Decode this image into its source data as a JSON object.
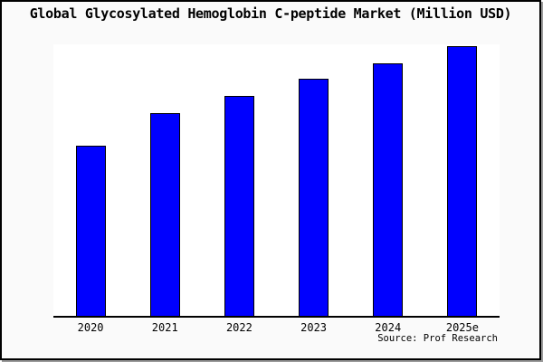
{
  "title": "Global Glycosylated Hemoglobin C-peptide Market (Million USD)",
  "source": "Source: Prof Research",
  "colors": {
    "page_bg": "#fafafa",
    "plot_bg": "#ffffff",
    "bar_fill": "#0000fe",
    "bar_border": "#000000",
    "axis": "#000000",
    "frame_border": "#000000",
    "text": "#000000"
  },
  "chart_data": {
    "type": "bar",
    "title": "Global Glycosylated Hemoglobin C-peptide Market (Million USD)",
    "categories": [
      "2020",
      "2021",
      "2022",
      "2023",
      "2024",
      "2025e"
    ],
    "values": [
      63.0,
      75.3,
      81.6,
      87.8,
      93.7,
      100.0
    ],
    "values_note": "No y-axis or data labels are shown in the chart; values are relative bar heights with tallest bar (2025e) = 100",
    "xlabel": "",
    "ylabel": "",
    "ylim": [
      0,
      100.7
    ],
    "grid": false,
    "legend": "none",
    "axis_lines": "bottom-only",
    "source": "Source: Prof Research"
  }
}
